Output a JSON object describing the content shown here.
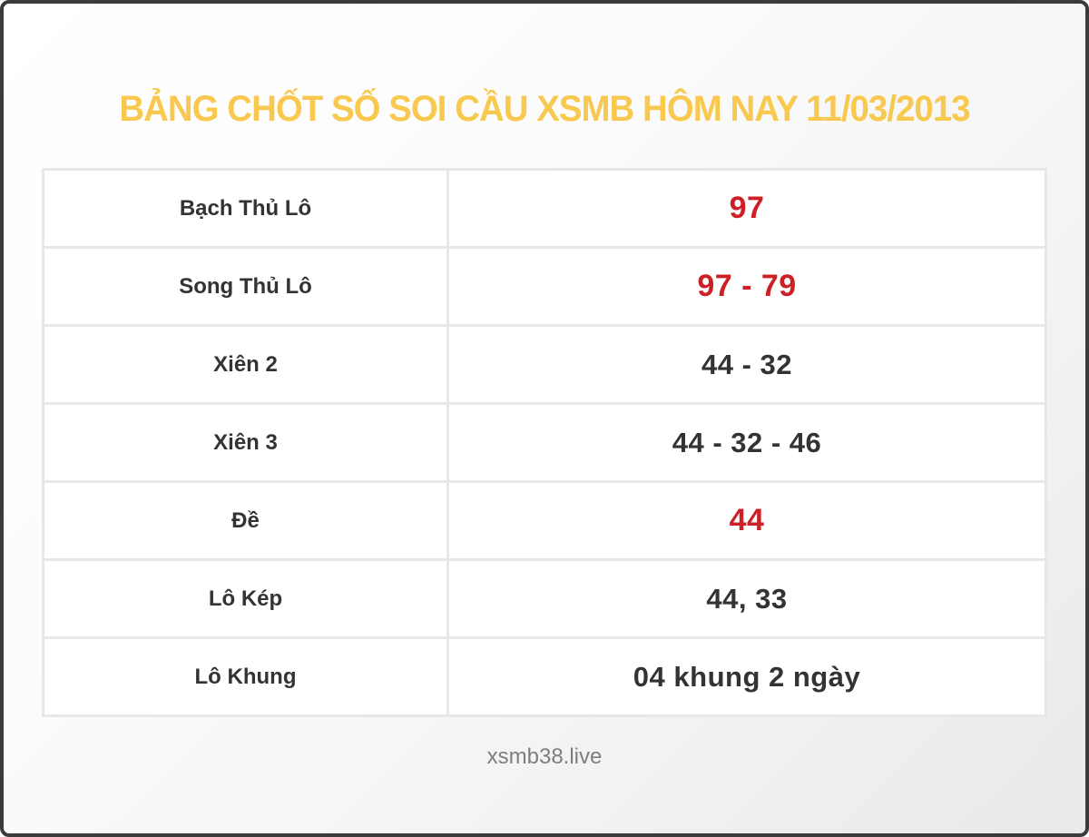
{
  "title": "BẢNG CHỐT SỐ SOI CẦU XSMB HÔM NAY 11/03/2013",
  "colors": {
    "title": "#f9c84e",
    "highlight_red": "#cb2026",
    "text_dark": "#333333",
    "footer_gray": "#7e7e7e",
    "frame_border": "#3b3b3b",
    "table_border": "#e7e7e7"
  },
  "table": {
    "rows": [
      {
        "label": "Bạch Thủ Lô",
        "value": "97",
        "highlight": true
      },
      {
        "label": "Song Thủ Lô",
        "value": "97 - 79",
        "highlight": true
      },
      {
        "label": "Xiên 2",
        "value": "44 - 32",
        "highlight": false
      },
      {
        "label": "Xiên 3",
        "value": "44 - 32 - 46",
        "highlight": false
      },
      {
        "label": "Đề",
        "value": "44",
        "highlight": true
      },
      {
        "label": "Lô Kép",
        "value": "44, 33",
        "highlight": false
      },
      {
        "label": "Lô Khung",
        "value": "04 khung 2 ngày",
        "highlight": false
      }
    ]
  },
  "footer": {
    "site": "xsmb38.live"
  }
}
